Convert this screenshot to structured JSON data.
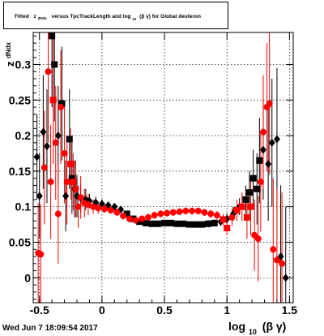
{
  "title": {
    "prefix": "Fitted",
    "z_main": "z",
    "z_sub": "dNdx",
    "middle": "versus TpcTrackLength and log",
    "log_sub": "10",
    "suffix": "(β γ) for Global deuteron"
  },
  "footer": {
    "timestamp": "Wed Jun  7 18:09:54 2017"
  },
  "y_axis_title": {
    "main": "z",
    "sub": "dNdx"
  },
  "x_axis_title": {
    "pre": "log",
    "sub": "10",
    "post": "(β γ)"
  },
  "colors": {
    "black_series": "#000000",
    "red_series": "#ff0000",
    "grid": "#000000",
    "frame": "#000000"
  },
  "chart_data": {
    "type": "scatter",
    "xlim": [
      -0.55,
      1.53
    ],
    "ylim": [
      -0.035,
      0.345
    ],
    "grid": true,
    "x_ticks": [
      -0.5,
      0,
      0.5,
      1,
      1.5
    ],
    "x_tick_labels": [
      "-0.5",
      "0",
      "0.5",
      "1",
      "1.5"
    ],
    "y_ticks": [
      0,
      0.05,
      0.1,
      0.15,
      0.2,
      0.25,
      0.3
    ],
    "y_tick_labels": [
      "0",
      "0.05",
      "0.1",
      "0.15",
      "0.2",
      "0.25",
      "0.3"
    ],
    "series": [
      {
        "color": "#000000",
        "points": [
          {
            "x": -0.52,
            "y": 0.17,
            "e": 0.06,
            "m": "diamond"
          },
          {
            "x": -0.5,
            "y": 0.115,
            "e": 0.06,
            "m": "diamond"
          },
          {
            "x": -0.47,
            "y": 0.205,
            "e": 0.08,
            "m": "diamond"
          },
          {
            "x": -0.44,
            "y": 0.185,
            "e": 0.08,
            "m": "diamond"
          },
          {
            "x": -0.4,
            "y": 0.34,
            "e": 0.1,
            "m": "square"
          },
          {
            "x": -0.38,
            "y": 0.3,
            "e": 0.08,
            "m": "square"
          },
          {
            "x": -0.35,
            "y": 0.2,
            "e": 0.07,
            "m": "diamond"
          },
          {
            "x": -0.32,
            "y": 0.245,
            "e": 0.08,
            "m": "square"
          },
          {
            "x": -0.29,
            "y": 0.115,
            "e": 0.05,
            "m": "diamond"
          },
          {
            "x": -0.26,
            "y": 0.195,
            "e": 0.07,
            "m": "square"
          },
          {
            "x": -0.24,
            "y": 0.14,
            "e": 0.05,
            "m": "square"
          },
          {
            "x": -0.22,
            "y": 0.125,
            "e": 0.04,
            "m": "diamond"
          },
          {
            "x": -0.2,
            "y": 0.115,
            "e": 0.03,
            "m": "diamond"
          },
          {
            "x": -0.17,
            "y": 0.112,
            "e": 0.02,
            "m": "diamond"
          },
          {
            "x": -0.13,
            "y": 0.11,
            "e": 0.015,
            "m": "diamond"
          },
          {
            "x": -0.1,
            "y": 0.108,
            "e": 0.01,
            "m": "diamond"
          },
          {
            "x": -0.05,
            "y": 0.106,
            "e": 0.008,
            "m": "diamond"
          },
          {
            "x": 0.0,
            "y": 0.104,
            "e": 0.006,
            "m": "diamond"
          },
          {
            "x": 0.05,
            "y": 0.102,
            "e": 0.005,
            "m": "diamond"
          },
          {
            "x": 0.1,
            "y": 0.1,
            "e": 0.004,
            "m": "diamond"
          },
          {
            "x": 0.15,
            "y": 0.096,
            "e": 0.004,
            "m": "diamond"
          },
          {
            "x": 0.2,
            "y": 0.09,
            "e": 0.004,
            "m": "square"
          },
          {
            "x": 0.25,
            "y": 0.083,
            "e": 0.004,
            "m": "square"
          },
          {
            "x": 0.3,
            "y": 0.079,
            "e": 0.004,
            "m": "square"
          },
          {
            "x": 0.35,
            "y": 0.077,
            "e": 0.004,
            "m": "square"
          },
          {
            "x": 0.4,
            "y": 0.076,
            "e": 0.004,
            "m": "square"
          },
          {
            "x": 0.45,
            "y": 0.076,
            "e": 0.004,
            "m": "square"
          },
          {
            "x": 0.5,
            "y": 0.077,
            "e": 0.004,
            "m": "square"
          },
          {
            "x": 0.55,
            "y": 0.077,
            "e": 0.004,
            "m": "square"
          },
          {
            "x": 0.6,
            "y": 0.076,
            "e": 0.004,
            "m": "square"
          },
          {
            "x": 0.65,
            "y": 0.076,
            "e": 0.004,
            "m": "square"
          },
          {
            "x": 0.7,
            "y": 0.075,
            "e": 0.004,
            "m": "square"
          },
          {
            "x": 0.75,
            "y": 0.075,
            "e": 0.004,
            "m": "square"
          },
          {
            "x": 0.8,
            "y": 0.075,
            "e": 0.004,
            "m": "square"
          },
          {
            "x": 0.85,
            "y": 0.076,
            "e": 0.005,
            "m": "square"
          },
          {
            "x": 0.9,
            "y": 0.077,
            "e": 0.005,
            "m": "square"
          },
          {
            "x": 0.95,
            "y": 0.079,
            "e": 0.006,
            "m": "diamond"
          },
          {
            "x": 1.0,
            "y": 0.083,
            "e": 0.008,
            "m": "diamond"
          },
          {
            "x": 1.05,
            "y": 0.09,
            "e": 0.01,
            "m": "diamond"
          },
          {
            "x": 1.1,
            "y": 0.1,
            "e": 0.012,
            "m": "diamond"
          },
          {
            "x": 1.15,
            "y": 0.11,
            "e": 0.02,
            "m": "square"
          },
          {
            "x": 1.18,
            "y": 0.12,
            "e": 0.03,
            "m": "square"
          },
          {
            "x": 1.21,
            "y": 0.14,
            "e": 0.04,
            "m": "square"
          },
          {
            "x": 1.24,
            "y": 0.125,
            "e": 0.05,
            "m": "square"
          },
          {
            "x": 1.26,
            "y": 0.165,
            "e": 0.06,
            "m": "square"
          },
          {
            "x": 1.29,
            "y": 0.18,
            "e": 0.07,
            "m": "diamond"
          },
          {
            "x": 1.33,
            "y": 0.16,
            "e": 0.08,
            "m": "diamond"
          },
          {
            "x": 1.36,
            "y": 0.19,
            "e": 0.09,
            "m": "diamond"
          },
          {
            "x": 1.4,
            "y": 0.195,
            "e": 0.1,
            "m": "diamond"
          },
          {
            "x": 1.43,
            "y": 0.03,
            "e": 0.1,
            "m": "diamond"
          },
          {
            "x": 1.47,
            "y": 0.0,
            "e": 0.1,
            "m": "diamond"
          }
        ]
      },
      {
        "color": "#ff0000",
        "points": [
          {
            "x": -0.51,
            "y": 0.035,
            "e": 0.07,
            "m": "circle"
          },
          {
            "x": -0.49,
            "y": 0.033,
            "e": 0.07,
            "m": "circle"
          },
          {
            "x": -0.46,
            "y": 0.155,
            "e": 0.08,
            "m": "circle"
          },
          {
            "x": -0.43,
            "y": 0.29,
            "e": 0.1,
            "m": "circle"
          },
          {
            "x": -0.41,
            "y": 0.135,
            "e": 0.08,
            "m": "circle"
          },
          {
            "x": -0.39,
            "y": 0.25,
            "e": 0.09,
            "m": "square"
          },
          {
            "x": -0.37,
            "y": 0.19,
            "e": 0.08,
            "m": "circle"
          },
          {
            "x": -0.35,
            "y": 0.09,
            "e": 0.07,
            "m": "circle"
          },
          {
            "x": -0.33,
            "y": 0.24,
            "e": 0.08,
            "m": "circle"
          },
          {
            "x": -0.3,
            "y": 0.175,
            "e": 0.07,
            "m": "circle"
          },
          {
            "x": -0.28,
            "y": 0.135,
            "e": 0.06,
            "m": "circle"
          },
          {
            "x": -0.25,
            "y": 0.16,
            "e": 0.05,
            "m": "square"
          },
          {
            "x": -0.23,
            "y": 0.135,
            "e": 0.04,
            "m": "square"
          },
          {
            "x": -0.21,
            "y": 0.125,
            "e": 0.04,
            "m": "circle"
          },
          {
            "x": -0.19,
            "y": 0.1,
            "e": 0.03,
            "m": "circle"
          },
          {
            "x": -0.17,
            "y": 0.113,
            "e": 0.03,
            "m": "circle"
          },
          {
            "x": -0.14,
            "y": 0.105,
            "e": 0.02,
            "m": "circle"
          },
          {
            "x": -0.11,
            "y": 0.103,
            "e": 0.015,
            "m": "circle"
          },
          {
            "x": -0.07,
            "y": 0.1,
            "e": 0.01,
            "m": "circle"
          },
          {
            "x": -0.03,
            "y": 0.098,
            "e": 0.008,
            "m": "circle"
          },
          {
            "x": 0.02,
            "y": 0.097,
            "e": 0.006,
            "m": "circle"
          },
          {
            "x": 0.07,
            "y": 0.095,
            "e": 0.005,
            "m": "circle"
          },
          {
            "x": 0.12,
            "y": 0.092,
            "e": 0.005,
            "m": "circle"
          },
          {
            "x": 0.17,
            "y": 0.087,
            "e": 0.005,
            "m": "circle"
          },
          {
            "x": 0.22,
            "y": 0.083,
            "e": 0.005,
            "m": "circle"
          },
          {
            "x": 0.27,
            "y": 0.081,
            "e": 0.005,
            "m": "circle"
          },
          {
            "x": 0.32,
            "y": 0.083,
            "e": 0.005,
            "m": "circle"
          },
          {
            "x": 0.37,
            "y": 0.085,
            "e": 0.005,
            "m": "circle"
          },
          {
            "x": 0.42,
            "y": 0.088,
            "e": 0.005,
            "m": "circle"
          },
          {
            "x": 0.47,
            "y": 0.09,
            "e": 0.005,
            "m": "circle"
          },
          {
            "x": 0.52,
            "y": 0.091,
            "e": 0.005,
            "m": "circle"
          },
          {
            "x": 0.57,
            "y": 0.092,
            "e": 0.005,
            "m": "circle"
          },
          {
            "x": 0.62,
            "y": 0.093,
            "e": 0.005,
            "m": "circle"
          },
          {
            "x": 0.67,
            "y": 0.094,
            "e": 0.005,
            "m": "circle"
          },
          {
            "x": 0.72,
            "y": 0.094,
            "e": 0.005,
            "m": "circle"
          },
          {
            "x": 0.77,
            "y": 0.094,
            "e": 0.005,
            "m": "circle"
          },
          {
            "x": 0.82,
            "y": 0.092,
            "e": 0.005,
            "m": "circle"
          },
          {
            "x": 0.87,
            "y": 0.09,
            "e": 0.006,
            "m": "circle"
          },
          {
            "x": 0.92,
            "y": 0.088,
            "e": 0.006,
            "m": "circle"
          },
          {
            "x": 0.97,
            "y": 0.082,
            "e": 0.008,
            "m": "square"
          },
          {
            "x": 1.0,
            "y": 0.07,
            "e": 0.01,
            "m": "square"
          },
          {
            "x": 1.04,
            "y": 0.085,
            "e": 0.012,
            "m": "circle"
          },
          {
            "x": 1.08,
            "y": 0.095,
            "e": 0.015,
            "m": "square"
          },
          {
            "x": 1.12,
            "y": 0.1,
            "e": 0.02,
            "m": "square"
          },
          {
            "x": 1.16,
            "y": 0.085,
            "e": 0.03,
            "m": "square"
          },
          {
            "x": 1.19,
            "y": 0.1,
            "e": 0.04,
            "m": "square"
          },
          {
            "x": 1.22,
            "y": 0.06,
            "e": 0.05,
            "m": "circle"
          },
          {
            "x": 1.25,
            "y": 0.055,
            "e": 0.06,
            "m": "circle"
          },
          {
            "x": 1.27,
            "y": 0.135,
            "e": 0.07,
            "m": "circle"
          },
          {
            "x": 1.29,
            "y": 0.205,
            "e": 0.08,
            "m": "circle"
          },
          {
            "x": 1.32,
            "y": 0.24,
            "e": 0.09,
            "m": "circle"
          },
          {
            "x": 1.34,
            "y": 0.245,
            "e": 0.1,
            "m": "circle"
          },
          {
            "x": 1.37,
            "y": 0.04,
            "e": 0.1,
            "m": "circle"
          },
          {
            "x": 1.4,
            "y": 0.025,
            "e": 0.1,
            "m": "circle"
          },
          {
            "x": 1.44,
            "y": 0.02,
            "e": 0.1,
            "m": "circle"
          }
        ]
      }
    ]
  }
}
